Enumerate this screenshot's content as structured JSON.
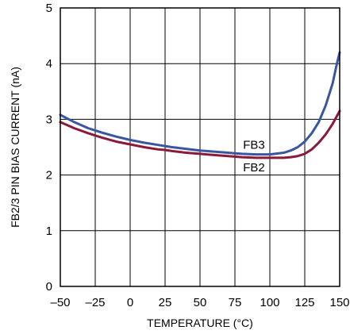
{
  "chart_data": {
    "type": "line",
    "title": "",
    "xlabel": "TEMPERATURE (°C)",
    "ylabel": "FB2/3 PIN BIAS CURRENT (nA)",
    "xlim": [
      -50,
      150
    ],
    "ylim": [
      0,
      5
    ],
    "grid": true,
    "x_ticks": [
      -50,
      -25,
      0,
      25,
      50,
      75,
      100,
      125,
      150
    ],
    "x_tick_labels": [
      "–50",
      "–25",
      "0",
      "25",
      "50",
      "75",
      "100",
      "125",
      "150"
    ],
    "y_ticks": [
      0,
      1,
      2,
      3,
      4,
      5
    ],
    "y_tick_labels": [
      "0",
      "1",
      "2",
      "3",
      "4",
      "5"
    ],
    "y_tick_positions": [
      0,
      1,
      2,
      3,
      4,
      5
    ],
    "series": [
      {
        "name": "FB3",
        "color": "#3a56a0",
        "x": [
          -50,
          -40,
          -30,
          -25,
          -20,
          -10,
          0,
          10,
          20,
          25,
          30,
          40,
          50,
          60,
          70,
          75,
          80,
          90,
          100,
          110,
          115,
          120,
          125,
          130,
          135,
          140,
          145,
          148,
          150
        ],
        "y": [
          3.08,
          2.95,
          2.84,
          2.8,
          2.76,
          2.69,
          2.63,
          2.58,
          2.54,
          2.52,
          2.5,
          2.47,
          2.44,
          2.42,
          2.4,
          2.39,
          2.38,
          2.37,
          2.37,
          2.4,
          2.44,
          2.5,
          2.6,
          2.75,
          2.95,
          3.25,
          3.65,
          4.0,
          4.2
        ]
      },
      {
        "name": "FB2",
        "color": "#8b1a3a",
        "x": [
          -50,
          -40,
          -30,
          -25,
          -20,
          -10,
          0,
          10,
          20,
          25,
          30,
          40,
          50,
          60,
          70,
          75,
          80,
          90,
          100,
          110,
          115,
          120,
          125,
          130,
          135,
          140,
          145,
          150
        ],
        "y": [
          2.95,
          2.84,
          2.75,
          2.71,
          2.67,
          2.6,
          2.55,
          2.5,
          2.46,
          2.45,
          2.43,
          2.4,
          2.38,
          2.36,
          2.34,
          2.33,
          2.32,
          2.31,
          2.31,
          2.31,
          2.32,
          2.34,
          2.38,
          2.46,
          2.58,
          2.73,
          2.92,
          3.15
        ]
      }
    ],
    "annotations": [
      {
        "text": "FB3",
        "x": 100,
        "y": 2.54
      },
      {
        "text": "FB2",
        "x": 100,
        "y": 2.14
      }
    ]
  }
}
